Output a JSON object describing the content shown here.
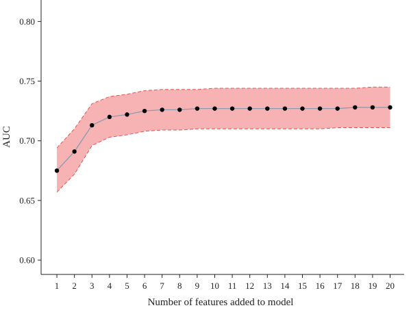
{
  "chart_data": {
    "type": "line",
    "title": "",
    "xlabel": "Number of features added to model",
    "ylabel": "AUC",
    "x": [
      1,
      2,
      3,
      4,
      5,
      6,
      7,
      8,
      9,
      10,
      11,
      12,
      13,
      14,
      15,
      16,
      17,
      18,
      19,
      20
    ],
    "xticks": [
      "1",
      "2",
      "3",
      "4",
      "5",
      "6",
      "7",
      "8",
      "9",
      "10",
      "11",
      "12",
      "13",
      "14",
      "15",
      "16",
      "17",
      "18",
      "19",
      "20"
    ],
    "yticks": [
      "0.60",
      "0.65",
      "0.70",
      "0.75",
      "0.80"
    ],
    "ylim": [
      0.588,
      0.818
    ],
    "xlim": [
      0.1,
      20.8
    ],
    "grid": false,
    "series": [
      {
        "values": [
          0.675,
          0.691,
          0.713,
          0.72,
          0.722,
          0.725,
          0.726,
          0.726,
          0.727,
          0.727,
          0.727,
          0.727,
          0.727,
          0.727,
          0.727,
          0.727,
          0.727,
          0.728,
          0.728,
          0.728
        ],
        "upper": [
          0.694,
          0.71,
          0.731,
          0.737,
          0.739,
          0.742,
          0.743,
          0.743,
          0.743,
          0.744,
          0.744,
          0.744,
          0.744,
          0.744,
          0.744,
          0.744,
          0.744,
          0.744,
          0.745,
          0.745
        ],
        "lower": [
          0.657,
          0.672,
          0.696,
          0.703,
          0.705,
          0.708,
          0.709,
          0.709,
          0.71,
          0.71,
          0.71,
          0.71,
          0.71,
          0.71,
          0.71,
          0.71,
          0.711,
          0.711,
          0.711,
          0.711
        ]
      }
    ],
    "colors": {
      "band_fill": "#f7b3b3",
      "band_edge": "#e8504f",
      "line": "#8a9bb0",
      "marker": "#000000",
      "axis": "#222222"
    }
  }
}
